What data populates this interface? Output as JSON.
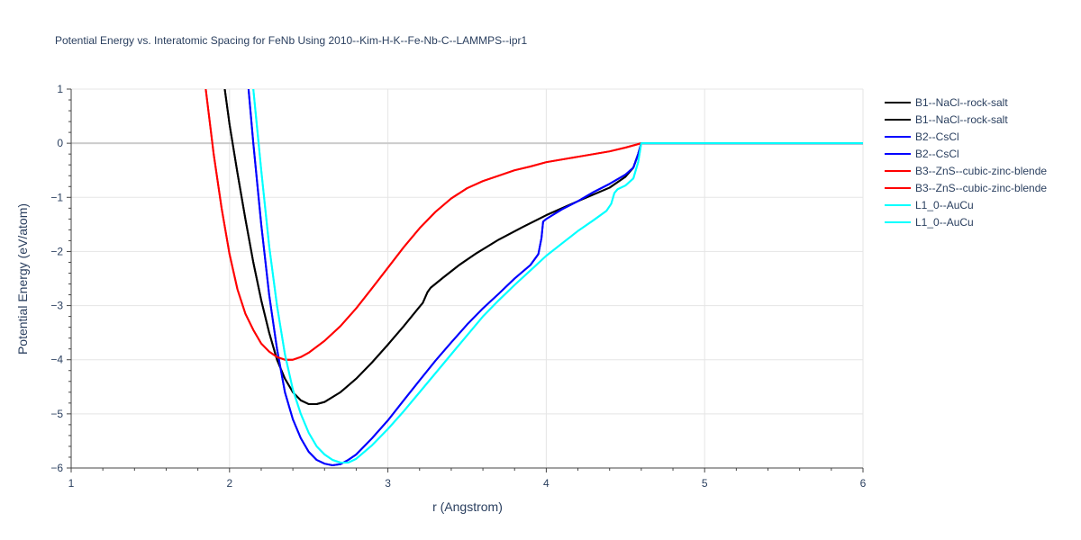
{
  "chart_data": {
    "type": "line",
    "title": "Potential Energy vs. Interatomic Spacing for FeNb Using 2010--Kim-H-K--Fe-Nb-C--LAMMPS--ipr1",
    "xlabel": "r (Angstrom)",
    "ylabel": "Potential Energy (eV/atom)",
    "xlim": [
      1,
      6
    ],
    "ylim": [
      -6,
      1
    ],
    "x_ticks": [
      "1",
      "2",
      "3",
      "4",
      "5",
      "6"
    ],
    "y_ticks": [
      "1",
      "0",
      "−1",
      "−2",
      "−3",
      "−4",
      "−5",
      "−6"
    ],
    "grid": true,
    "legend_position": "top-right",
    "series": [
      {
        "name": "B1--NaCl--rock-salt",
        "color": "#000000",
        "points": [
          [
            1.97,
            1.0
          ],
          [
            2.0,
            0.35
          ],
          [
            2.05,
            -0.55
          ],
          [
            2.1,
            -1.4
          ],
          [
            2.15,
            -2.2
          ],
          [
            2.2,
            -2.9
          ],
          [
            2.25,
            -3.5
          ],
          [
            2.3,
            -4.0
          ],
          [
            2.35,
            -4.35
          ],
          [
            2.4,
            -4.6
          ],
          [
            2.45,
            -4.75
          ],
          [
            2.5,
            -4.82
          ],
          [
            2.55,
            -4.82
          ],
          [
            2.6,
            -4.78
          ],
          [
            2.7,
            -4.6
          ],
          [
            2.8,
            -4.35
          ],
          [
            2.9,
            -4.05
          ],
          [
            3.0,
            -3.72
          ],
          [
            3.1,
            -3.38
          ],
          [
            3.2,
            -3.02
          ],
          [
            3.22,
            -2.95
          ],
          [
            3.25,
            -2.75
          ],
          [
            3.27,
            -2.67
          ],
          [
            3.35,
            -2.48
          ],
          [
            3.45,
            -2.25
          ],
          [
            3.55,
            -2.05
          ],
          [
            3.7,
            -1.78
          ],
          [
            3.85,
            -1.55
          ],
          [
            4.0,
            -1.33
          ],
          [
            4.2,
            -1.07
          ],
          [
            4.4,
            -0.82
          ],
          [
            4.5,
            -0.62
          ],
          [
            4.55,
            -0.45
          ],
          [
            4.58,
            -0.2
          ],
          [
            4.6,
            0.0
          ],
          [
            4.7,
            0.0
          ],
          [
            6.0,
            0.0
          ]
        ]
      },
      {
        "name": "B1--NaCl--rock-salt",
        "color": "#000000",
        "points": [
          [
            1.97,
            1.0
          ],
          [
            2.0,
            0.35
          ],
          [
            2.05,
            -0.55
          ],
          [
            2.1,
            -1.4
          ],
          [
            2.15,
            -2.2
          ],
          [
            2.2,
            -2.9
          ],
          [
            2.25,
            -3.5
          ],
          [
            2.3,
            -4.0
          ],
          [
            2.35,
            -4.35
          ],
          [
            2.4,
            -4.6
          ],
          [
            2.45,
            -4.75
          ],
          [
            2.5,
            -4.82
          ],
          [
            2.55,
            -4.82
          ],
          [
            2.6,
            -4.78
          ],
          [
            2.7,
            -4.6
          ],
          [
            2.8,
            -4.35
          ],
          [
            2.9,
            -4.05
          ],
          [
            3.0,
            -3.72
          ],
          [
            3.1,
            -3.38
          ],
          [
            3.2,
            -3.02
          ],
          [
            3.22,
            -2.95
          ],
          [
            3.25,
            -2.75
          ],
          [
            3.27,
            -2.67
          ],
          [
            3.35,
            -2.48
          ],
          [
            3.45,
            -2.25
          ],
          [
            3.55,
            -2.05
          ],
          [
            3.7,
            -1.78
          ],
          [
            3.85,
            -1.55
          ],
          [
            4.0,
            -1.33
          ],
          [
            4.2,
            -1.07
          ],
          [
            4.4,
            -0.82
          ],
          [
            4.5,
            -0.62
          ],
          [
            4.55,
            -0.45
          ],
          [
            4.58,
            -0.2
          ],
          [
            4.6,
            0.0
          ],
          [
            4.7,
            0.0
          ],
          [
            6.0,
            0.0
          ]
        ]
      },
      {
        "name": "B2--CsCl",
        "color": "#0000ff",
        "points": [
          [
            2.12,
            1.0
          ],
          [
            2.15,
            0.0
          ],
          [
            2.2,
            -1.5
          ],
          [
            2.25,
            -2.8
          ],
          [
            2.3,
            -3.8
          ],
          [
            2.35,
            -4.6
          ],
          [
            2.4,
            -5.1
          ],
          [
            2.45,
            -5.45
          ],
          [
            2.5,
            -5.7
          ],
          [
            2.55,
            -5.85
          ],
          [
            2.6,
            -5.92
          ],
          [
            2.65,
            -5.95
          ],
          [
            2.7,
            -5.93
          ],
          [
            2.75,
            -5.85
          ],
          [
            2.8,
            -5.75
          ],
          [
            2.9,
            -5.45
          ],
          [
            3.0,
            -5.12
          ],
          [
            3.1,
            -4.75
          ],
          [
            3.2,
            -4.38
          ],
          [
            3.3,
            -4.02
          ],
          [
            3.4,
            -3.68
          ],
          [
            3.5,
            -3.35
          ],
          [
            3.6,
            -3.05
          ],
          [
            3.7,
            -2.78
          ],
          [
            3.8,
            -2.5
          ],
          [
            3.9,
            -2.25
          ],
          [
            3.95,
            -2.05
          ],
          [
            3.97,
            -1.75
          ],
          [
            3.98,
            -1.45
          ],
          [
            4.0,
            -1.4
          ],
          [
            4.1,
            -1.22
          ],
          [
            4.2,
            -1.07
          ],
          [
            4.3,
            -0.9
          ],
          [
            4.4,
            -0.75
          ],
          [
            4.5,
            -0.58
          ],
          [
            4.55,
            -0.45
          ],
          [
            4.58,
            -0.2
          ],
          [
            4.6,
            0.0
          ],
          [
            4.7,
            0.0
          ],
          [
            6.0,
            0.0
          ]
        ]
      },
      {
        "name": "B2--CsCl",
        "color": "#0000ff",
        "points": [
          [
            2.12,
            1.0
          ],
          [
            2.15,
            0.0
          ],
          [
            2.2,
            -1.5
          ],
          [
            2.25,
            -2.8
          ],
          [
            2.3,
            -3.8
          ],
          [
            2.35,
            -4.6
          ],
          [
            2.4,
            -5.1
          ],
          [
            2.45,
            -5.45
          ],
          [
            2.5,
            -5.7
          ],
          [
            2.55,
            -5.85
          ],
          [
            2.6,
            -5.92
          ],
          [
            2.65,
            -5.95
          ],
          [
            2.7,
            -5.93
          ],
          [
            2.75,
            -5.85
          ],
          [
            2.8,
            -5.75
          ],
          [
            2.9,
            -5.45
          ],
          [
            3.0,
            -5.12
          ],
          [
            3.1,
            -4.75
          ],
          [
            3.2,
            -4.38
          ],
          [
            3.3,
            -4.02
          ],
          [
            3.4,
            -3.68
          ],
          [
            3.5,
            -3.35
          ],
          [
            3.6,
            -3.05
          ],
          [
            3.7,
            -2.78
          ],
          [
            3.8,
            -2.5
          ],
          [
            3.9,
            -2.25
          ],
          [
            3.95,
            -2.05
          ],
          [
            3.97,
            -1.75
          ],
          [
            3.98,
            -1.45
          ],
          [
            4.0,
            -1.4
          ],
          [
            4.1,
            -1.22
          ],
          [
            4.2,
            -1.07
          ],
          [
            4.3,
            -0.9
          ],
          [
            4.4,
            -0.75
          ],
          [
            4.5,
            -0.58
          ],
          [
            4.55,
            -0.45
          ],
          [
            4.58,
            -0.2
          ],
          [
            4.6,
            0.0
          ],
          [
            4.7,
            0.0
          ],
          [
            6.0,
            0.0
          ]
        ]
      },
      {
        "name": "B3--ZnS--cubic-zinc-blende",
        "color": "#ff0000",
        "points": [
          [
            1.85,
            1.0
          ],
          [
            1.9,
            -0.2
          ],
          [
            1.95,
            -1.2
          ],
          [
            2.0,
            -2.05
          ],
          [
            2.05,
            -2.7
          ],
          [
            2.1,
            -3.15
          ],
          [
            2.15,
            -3.45
          ],
          [
            2.2,
            -3.7
          ],
          [
            2.25,
            -3.85
          ],
          [
            2.3,
            -3.95
          ],
          [
            2.35,
            -4.0
          ],
          [
            2.4,
            -4.0
          ],
          [
            2.45,
            -3.95
          ],
          [
            2.5,
            -3.87
          ],
          [
            2.6,
            -3.65
          ],
          [
            2.7,
            -3.38
          ],
          [
            2.8,
            -3.05
          ],
          [
            2.9,
            -2.68
          ],
          [
            3.0,
            -2.3
          ],
          [
            3.1,
            -1.92
          ],
          [
            3.2,
            -1.57
          ],
          [
            3.3,
            -1.27
          ],
          [
            3.4,
            -1.02
          ],
          [
            3.5,
            -0.83
          ],
          [
            3.6,
            -0.7
          ],
          [
            3.7,
            -0.6
          ],
          [
            3.8,
            -0.5
          ],
          [
            3.9,
            -0.43
          ],
          [
            4.0,
            -0.35
          ],
          [
            4.2,
            -0.25
          ],
          [
            4.4,
            -0.15
          ],
          [
            4.5,
            -0.08
          ],
          [
            4.6,
            0.0
          ],
          [
            4.7,
            0.0
          ],
          [
            6.0,
            0.0
          ]
        ]
      },
      {
        "name": "B3--ZnS--cubic-zinc-blende",
        "color": "#ff0000",
        "points": [
          [
            1.85,
            1.0
          ],
          [
            1.9,
            -0.2
          ],
          [
            1.95,
            -1.2
          ],
          [
            2.0,
            -2.05
          ],
          [
            2.05,
            -2.7
          ],
          [
            2.1,
            -3.15
          ],
          [
            2.15,
            -3.45
          ],
          [
            2.2,
            -3.7
          ],
          [
            2.25,
            -3.85
          ],
          [
            2.3,
            -3.95
          ],
          [
            2.35,
            -4.0
          ],
          [
            2.4,
            -4.0
          ],
          [
            2.45,
            -3.95
          ],
          [
            2.5,
            -3.87
          ],
          [
            2.6,
            -3.65
          ],
          [
            2.7,
            -3.38
          ],
          [
            2.8,
            -3.05
          ],
          [
            2.9,
            -2.68
          ],
          [
            3.0,
            -2.3
          ],
          [
            3.1,
            -1.92
          ],
          [
            3.2,
            -1.57
          ],
          [
            3.3,
            -1.27
          ],
          [
            3.4,
            -1.02
          ],
          [
            3.5,
            -0.83
          ],
          [
            3.6,
            -0.7
          ],
          [
            3.7,
            -0.6
          ],
          [
            3.8,
            -0.5
          ],
          [
            3.9,
            -0.43
          ],
          [
            4.0,
            -0.35
          ],
          [
            4.2,
            -0.25
          ],
          [
            4.4,
            -0.15
          ],
          [
            4.5,
            -0.08
          ],
          [
            4.6,
            0.0
          ],
          [
            4.7,
            0.0
          ],
          [
            6.0,
            0.0
          ]
        ]
      },
      {
        "name": "L1_0--AuCu",
        "color": "#00ffff",
        "points": [
          [
            2.15,
            1.0
          ],
          [
            2.2,
            -0.5
          ],
          [
            2.25,
            -1.9
          ],
          [
            2.3,
            -3.0
          ],
          [
            2.35,
            -3.9
          ],
          [
            2.4,
            -4.55
          ],
          [
            2.45,
            -5.0
          ],
          [
            2.5,
            -5.35
          ],
          [
            2.55,
            -5.6
          ],
          [
            2.6,
            -5.75
          ],
          [
            2.65,
            -5.85
          ],
          [
            2.7,
            -5.9
          ],
          [
            2.75,
            -5.9
          ],
          [
            2.8,
            -5.83
          ],
          [
            2.9,
            -5.58
          ],
          [
            3.0,
            -5.28
          ],
          [
            3.1,
            -4.95
          ],
          [
            3.2,
            -4.6
          ],
          [
            3.3,
            -4.25
          ],
          [
            3.4,
            -3.9
          ],
          [
            3.5,
            -3.55
          ],
          [
            3.6,
            -3.2
          ],
          [
            3.7,
            -2.9
          ],
          [
            3.8,
            -2.62
          ],
          [
            3.9,
            -2.35
          ],
          [
            4.0,
            -2.08
          ],
          [
            4.1,
            -1.85
          ],
          [
            4.2,
            -1.62
          ],
          [
            4.3,
            -1.42
          ],
          [
            4.38,
            -1.25
          ],
          [
            4.41,
            -1.12
          ],
          [
            4.43,
            -0.92
          ],
          [
            4.45,
            -0.85
          ],
          [
            4.5,
            -0.78
          ],
          [
            4.55,
            -0.65
          ],
          [
            4.58,
            -0.35
          ],
          [
            4.6,
            0.0
          ],
          [
            4.7,
            0.0
          ],
          [
            6.0,
            0.0
          ]
        ]
      },
      {
        "name": "L1_0--AuCu",
        "color": "#00ffff",
        "points": [
          [
            2.15,
            1.0
          ],
          [
            2.2,
            -0.5
          ],
          [
            2.25,
            -1.9
          ],
          [
            2.3,
            -3.0
          ],
          [
            2.35,
            -3.9
          ],
          [
            2.4,
            -4.55
          ],
          [
            2.45,
            -5.0
          ],
          [
            2.5,
            -5.35
          ],
          [
            2.55,
            -5.6
          ],
          [
            2.6,
            -5.75
          ],
          [
            2.65,
            -5.85
          ],
          [
            2.7,
            -5.9
          ],
          [
            2.75,
            -5.9
          ],
          [
            2.8,
            -5.83
          ],
          [
            2.9,
            -5.58
          ],
          [
            3.0,
            -5.28
          ],
          [
            3.1,
            -4.95
          ],
          [
            3.2,
            -4.6
          ],
          [
            3.3,
            -4.25
          ],
          [
            3.4,
            -3.9
          ],
          [
            3.5,
            -3.55
          ],
          [
            3.6,
            -3.2
          ],
          [
            3.7,
            -2.9
          ],
          [
            3.8,
            -2.62
          ],
          [
            3.9,
            -2.35
          ],
          [
            4.0,
            -2.08
          ],
          [
            4.1,
            -1.85
          ],
          [
            4.2,
            -1.62
          ],
          [
            4.3,
            -1.42
          ],
          [
            4.38,
            -1.25
          ],
          [
            4.41,
            -1.12
          ],
          [
            4.43,
            -0.92
          ],
          [
            4.45,
            -0.85
          ],
          [
            4.5,
            -0.78
          ],
          [
            4.55,
            -0.65
          ],
          [
            4.58,
            -0.35
          ],
          [
            4.6,
            0.0
          ],
          [
            4.7,
            0.0
          ],
          [
            6.0,
            0.0
          ]
        ]
      }
    ]
  }
}
